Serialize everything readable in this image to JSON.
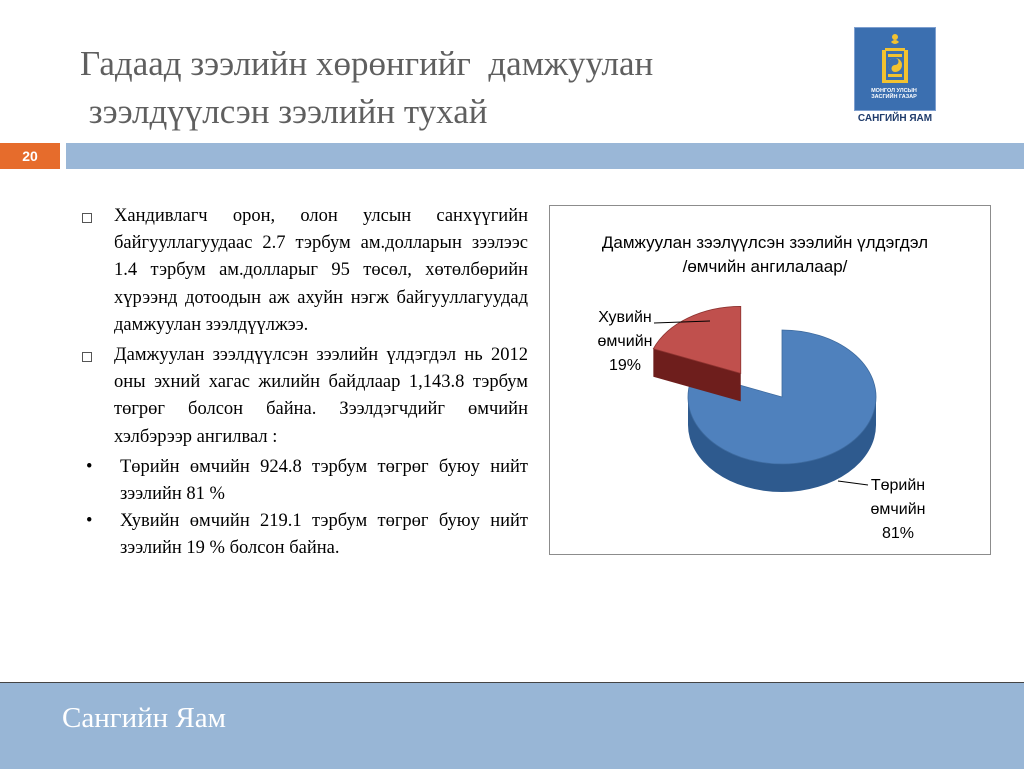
{
  "header": {
    "title_line1": "Гадаад зээлийн хөрөнгийг  дамжуулан",
    "title_line2": " зээлдүүлсэн зээлийн тухай",
    "logo_caption_line1": "МОНГОЛ УЛСЫН",
    "logo_caption_line2": "ЗАСГИЙН ГАЗАР",
    "ministry_label": "САНГИЙН ЯАМ",
    "slide_number": "20",
    "logo_icon": "soyombo-emblem-icon"
  },
  "body": {
    "paragraphs": [
      "Хандивлагч орон, олон улсын санхүүгийн байгууллагуудаас 2.7 тэрбум ам.долларын зээлээс 1.4 тэрбум ам.долларыг 95 төсөл, хөтөлбөрийн хүрээнд дотоодын аж ахуйн нэгж байгууллагуудад дамжуулан зээлдүүлжээ.",
      "Дамжуулан зээлдүүлсэн зээлийн үлдэгдэл нь 2012 оны эхний хагас жилийн байдлаар 1,143.8 тэрбум төгрөг болсон байна. Зээлдэгчдийг өмчийн хэлбэрээр ангилвал :"
    ],
    "bullets": [
      "Төрийн өмчийн 924.8 тэрбум төгрөг буюу нийт зээлийн 81 %",
      "Хувийн өмчийн 219.1 тэрбум төгрөг буюу нийт зээлийн 19 % болсон байна."
    ],
    "bullet_marker": "•"
  },
  "chart_data": {
    "type": "pie",
    "title_line1": "Дамжуулан зээлүүлсэн зээлийн үлдэгдэл",
    "title_line2": "/өмчийн ангилалаар/",
    "slices": [
      {
        "label_line1": "Төрийн",
        "label_line2": "өмчийн",
        "percent_label": "81%",
        "value": 81,
        "color": "#4f81bd",
        "side_color": "#2e5a8e"
      },
      {
        "label_line1": "Хувийн",
        "label_line2": "өмчийн",
        "percent_label": "19%",
        "value": 19,
        "color": "#c0504d",
        "side_color": "#6e1e1c"
      }
    ],
    "legend": "none"
  },
  "footer": {
    "text": "Сангийн Яам"
  },
  "colors": {
    "accent_orange": "#e66c2c",
    "bar_blue": "#9ab7d7",
    "title_gray": "#5f5f5f"
  }
}
